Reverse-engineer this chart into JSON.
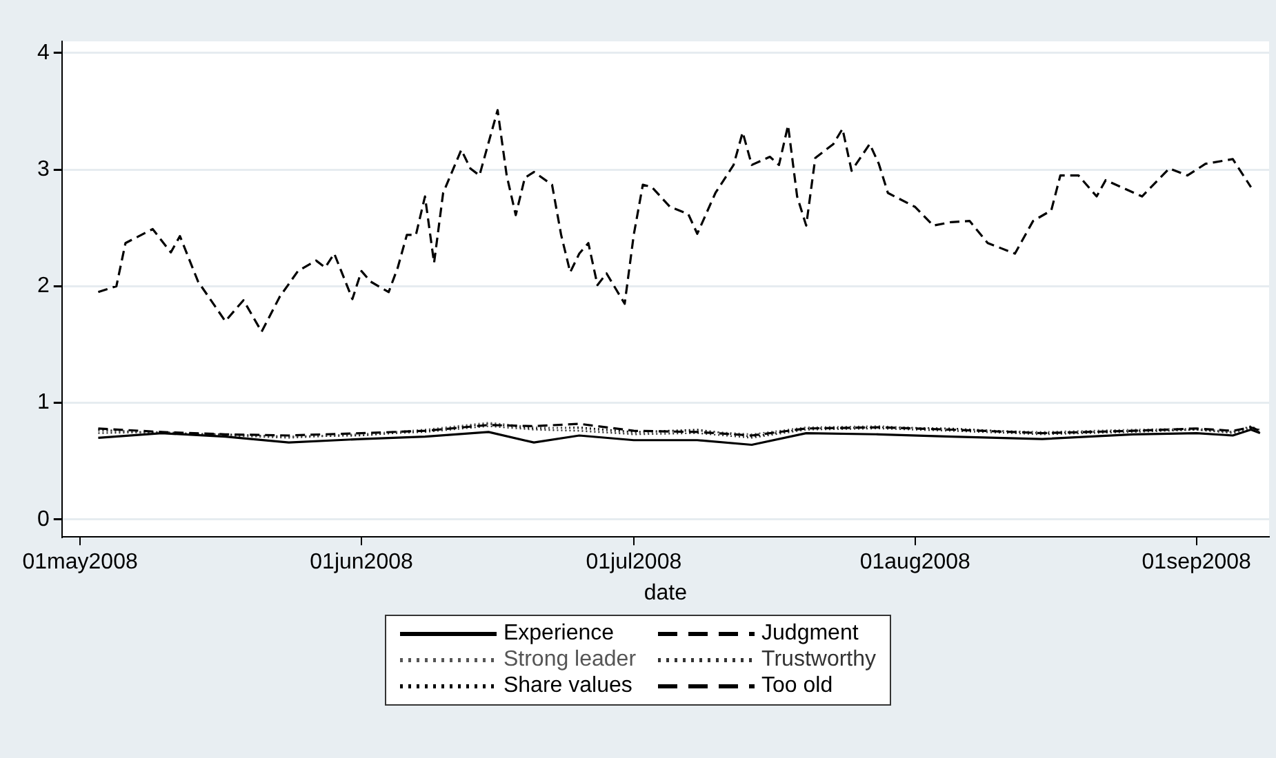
{
  "chart_data": {
    "type": "line",
    "xlabel": "date",
    "x": [
      "2008-05-03",
      "2008-05-10",
      "2008-05-17",
      "2008-05-24",
      "2008-06-01",
      "2008-06-08",
      "2008-06-15",
      "2008-06-20",
      "2008-06-25",
      "2008-07-01",
      "2008-07-08",
      "2008-07-14",
      "2008-07-20",
      "2008-07-28",
      "2008-08-05",
      "2008-08-15",
      "2008-08-25",
      "2008-09-01",
      "2008-09-05",
      "2008-09-07",
      "2008-09-08"
    ],
    "series": [
      {
        "name": "Experience",
        "color": "#000000",
        "line_style": "solid",
        "values": [
          0.7,
          0.74,
          0.71,
          0.66,
          0.69,
          0.71,
          0.75,
          0.66,
          0.72,
          0.68,
          0.68,
          0.64,
          0.74,
          0.73,
          0.71,
          0.69,
          0.73,
          0.74,
          0.72,
          0.77,
          0.74
        ]
      },
      {
        "name": "Judgment",
        "color": "#000000",
        "line_style": "dashed",
        "values": [
          0.78,
          0.75,
          0.73,
          0.72,
          0.74,
          0.76,
          0.81,
          0.8,
          0.82,
          0.76,
          0.75,
          0.72,
          0.78,
          0.79,
          0.77,
          0.74,
          0.76,
          0.78,
          0.76,
          0.79,
          0.76
        ]
      },
      {
        "name": "Strong leader",
        "color": "#555555",
        "line_style": "dotted",
        "values": [
          0.76,
          0.74,
          0.72,
          0.71,
          0.73,
          0.77,
          0.83,
          0.79,
          0.78,
          0.74,
          0.76,
          0.73,
          0.79,
          0.8,
          0.77,
          0.75,
          0.77,
          0.78,
          0.75,
          0.79,
          0.77
        ]
      },
      {
        "name": "Trustworthy",
        "color": "#333333",
        "line_style": "dotted",
        "values": [
          0.74,
          0.75,
          0.72,
          0.7,
          0.73,
          0.75,
          0.8,
          0.77,
          0.76,
          0.73,
          0.74,
          0.7,
          0.77,
          0.78,
          0.76,
          0.73,
          0.75,
          0.77,
          0.74,
          0.78,
          0.75
        ]
      },
      {
        "name": "Share values",
        "color": "#000000",
        "line_style": "dotted",
        "values": [
          0.77,
          0.74,
          0.73,
          0.71,
          0.72,
          0.76,
          0.82,
          0.78,
          0.79,
          0.75,
          0.77,
          0.71,
          0.78,
          0.79,
          0.78,
          0.74,
          0.76,
          0.77,
          0.75,
          0.8,
          0.76
        ]
      },
      {
        "name": "Too old",
        "color": "#000000",
        "line_style": "dashed",
        "x": [
          "2008-05-03",
          "2008-05-05",
          "2008-05-06",
          "2008-05-09",
          "2008-05-11",
          "2008-05-12",
          "2008-05-14",
          "2008-05-17",
          "2008-05-19",
          "2008-05-21",
          "2008-05-22",
          "2008-05-23",
          "2008-05-25",
          "2008-05-27",
          "2008-05-28",
          "2008-05-29",
          "2008-05-31",
          "2008-06-01",
          "2008-06-02",
          "2008-06-04",
          "2008-06-05",
          "2008-06-06",
          "2008-06-07",
          "2008-06-08",
          "2008-06-09",
          "2008-06-10",
          "2008-06-12",
          "2008-06-13",
          "2008-06-14",
          "2008-06-15",
          "2008-06-16",
          "2008-06-17",
          "2008-06-18",
          "2008-06-19",
          "2008-06-20",
          "2008-06-22",
          "2008-06-23",
          "2008-06-24",
          "2008-06-25",
          "2008-06-26",
          "2008-06-27",
          "2008-06-28",
          "2008-06-29",
          "2008-06-30",
          "2008-07-01",
          "2008-07-02",
          "2008-07-03",
          "2008-07-05",
          "2008-07-07",
          "2008-07-08",
          "2008-07-10",
          "2008-07-12",
          "2008-07-13",
          "2008-07-14",
          "2008-07-16",
          "2008-07-17",
          "2008-07-18",
          "2008-07-19",
          "2008-07-20",
          "2008-07-21",
          "2008-07-23",
          "2008-07-24",
          "2008-07-25",
          "2008-07-27",
          "2008-07-28",
          "2008-07-29",
          "2008-08-01",
          "2008-08-03",
          "2008-08-05",
          "2008-08-07",
          "2008-08-09",
          "2008-08-12",
          "2008-08-14",
          "2008-08-16",
          "2008-08-17",
          "2008-08-19",
          "2008-08-21",
          "2008-08-22",
          "2008-08-26",
          "2008-08-29",
          "2008-08-31",
          "2008-09-02",
          "2008-09-05",
          "2008-09-07"
        ],
        "values": [
          1.95,
          2.0,
          2.37,
          2.49,
          2.29,
          2.43,
          2.04,
          1.7,
          1.88,
          1.61,
          1.76,
          1.91,
          2.13,
          2.22,
          2.16,
          2.28,
          1.89,
          2.13,
          2.04,
          1.95,
          2.16,
          2.44,
          2.44,
          2.77,
          2.2,
          2.8,
          3.17,
          3.01,
          2.95,
          3.23,
          3.51,
          2.95,
          2.61,
          2.93,
          2.98,
          2.87,
          2.44,
          2.12,
          2.28,
          2.37,
          2.01,
          2.11,
          1.98,
          1.85,
          2.44,
          2.87,
          2.85,
          2.68,
          2.62,
          2.45,
          2.8,
          3.04,
          3.32,
          3.04,
          3.11,
          3.04,
          3.38,
          2.77,
          2.52,
          3.1,
          3.22,
          3.35,
          2.99,
          3.22,
          3.05,
          2.8,
          2.68,
          2.52,
          2.55,
          2.56,
          2.37,
          2.28,
          2.56,
          2.65,
          2.95,
          2.95,
          2.77,
          2.91,
          2.77,
          3.01,
          2.95,
          3.05,
          3.09,
          2.85
        ]
      }
    ],
    "xlim": [
      "2008-04-29",
      "2008-09-09"
    ],
    "xticks": [
      {
        "value": "2008-05-01",
        "label": "01may2008"
      },
      {
        "value": "2008-06-01",
        "label": "01jun2008"
      },
      {
        "value": "2008-07-01",
        "label": "01jul2008"
      },
      {
        "value": "2008-08-01",
        "label": "01aug2008"
      },
      {
        "value": "2008-09-01",
        "label": "01sep2008"
      }
    ],
    "ylim": [
      -0.15,
      4.1
    ],
    "yticks": [
      0,
      1,
      2,
      3,
      4
    ],
    "grid": "y",
    "legend": "bottom",
    "marker": "none"
  }
}
